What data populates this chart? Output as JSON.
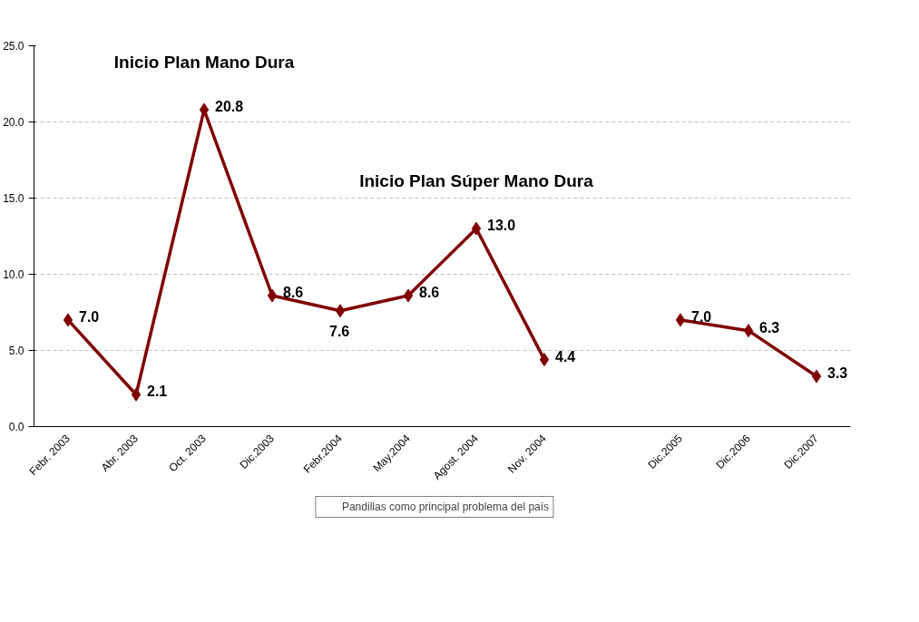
{
  "chart_data": {
    "type": "line",
    "categories": [
      "Febr. 2003",
      "Abr. 2003",
      "Oct. 2003",
      "Dic.2003",
      "Febr.2004",
      "May.2004",
      "Agost. 2004",
      "Nov. 2004",
      null,
      "Dic.2005",
      "Dic.2006",
      "Dic.2007"
    ],
    "series": [
      {
        "name": "Pandillas como principal problema del país",
        "color": "#800000",
        "values": [
          7.0,
          2.1,
          20.8,
          8.6,
          7.6,
          8.6,
          13.0,
          4.4,
          null,
          7.0,
          6.3,
          3.3
        ],
        "value_labels": [
          "7.0",
          "2.1",
          "20.8",
          "8.6",
          "7.6",
          "8.6",
          "13.0",
          "4.4",
          null,
          "7.0",
          "6.3",
          "3.3"
        ]
      }
    ],
    "ylim": [
      0,
      25
    ],
    "yticks": [
      {
        "value": 0,
        "label": "0.0"
      },
      {
        "value": 5,
        "label": "5.0"
      },
      {
        "value": 10,
        "label": "10.0"
      },
      {
        "value": 15,
        "label": "15.0"
      },
      {
        "value": 20,
        "label": "20.0"
      },
      {
        "value": 25,
        "label": "25.0"
      }
    ],
    "annotations": [
      "Inicio Plan Mano Dura",
      "Inicio Plan Súper Mano Dura"
    ],
    "grid": "y",
    "legend": "bottom",
    "marker": "diamond",
    "line_style": "solid"
  }
}
